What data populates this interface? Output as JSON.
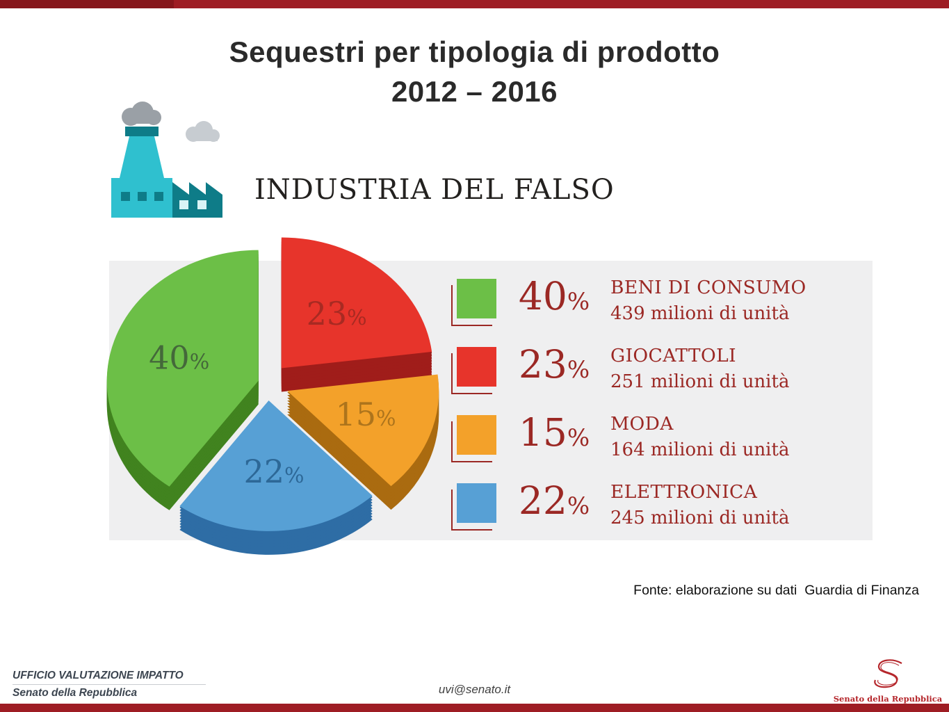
{
  "page": {
    "title_line1": "Sequestri per tipologia di prodotto",
    "title_line2": "2012 – 2016",
    "industry_label": "INDUSTRIA DEL FALSO"
  },
  "footer": {
    "office": "UFFICIO VALUTAZIONE IMPATTO",
    "institution": "Senato della Repubblica",
    "email": "uvi@senato.it",
    "logo_caption": "Senato della Repubblica"
  },
  "colors": {
    "accent_bar": "#9e1d24",
    "accent_bar_dark": "#86161b",
    "maroon_text": "#9b2824",
    "panel_bg": "#efeff0",
    "factory_teal": "#2fc0cf",
    "factory_teal_dark": "#0e7c88",
    "smoke_gray": "#9aa0a6",
    "smoke_gray_light": "#c7ccd1",
    "logo_red": "#b5262b"
  },
  "chart_data": {
    "type": "pie",
    "title": "Sequestri per tipologia di prodotto 2012 – 2016",
    "source": "Fonte: elaborazione su dati  Guardia di Finanza",
    "legend_position": "right",
    "start_angle_deg": 216,
    "slices": [
      {
        "name": "BENI DI CONSUMO",
        "pct": 40,
        "units": "439 milioni di unità",
        "color": "#6cbf47",
        "side": "#41831f",
        "label_color": "#44683a",
        "explode": 14
      },
      {
        "name": "GIOCATTOLI",
        "pct": 23,
        "units": "251 milioni di unità",
        "color": "#e7342b",
        "side": "#a01d1a",
        "label_color": "#a82a22",
        "explode": 30
      },
      {
        "name": "MODA",
        "pct": 15,
        "units": "164 milioni di unità",
        "color": "#f3a12a",
        "side": "#aa6b10",
        "label_color": "#ad741c",
        "explode": 30
      },
      {
        "name": "ELETTRONICA",
        "pct": 22,
        "units": "245 milioni di unità",
        "color": "#57a0d5",
        "side": "#2e6da5",
        "label_color": "#2d6897",
        "explode": 24
      }
    ]
  }
}
